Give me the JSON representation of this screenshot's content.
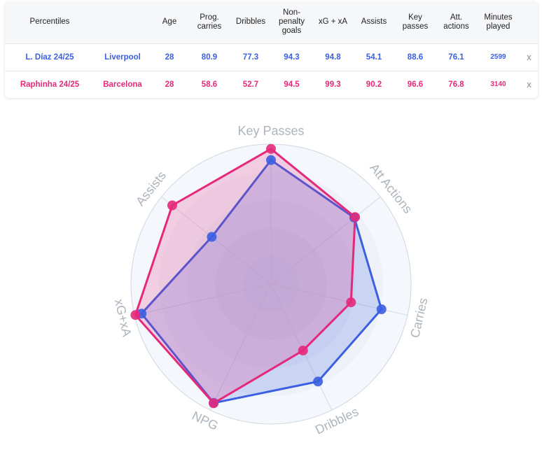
{
  "table": {
    "headers": [
      "Percentiles",
      "",
      "Age",
      "Prog. carries",
      "Dribbles",
      "Non-penalty goals",
      "xG + xA",
      "Assists",
      "Key passes",
      "Att. actions",
      "Minutes played",
      ""
    ],
    "rows": [
      {
        "player": "L. Díaz 24/25",
        "team": "Liverpool",
        "age": "28",
        "prog_carries": "80.9",
        "dribbles": "77.3",
        "np_goals": "94.3",
        "xg_xa": "94.8",
        "assists": "54.1",
        "key_passes": "88.6",
        "att_actions": "76.1",
        "minutes": "2599",
        "remove": "x",
        "color": "#3b5fe0"
      },
      {
        "player": "Raphinha 24/25",
        "team": "Barcelona",
        "age": "28",
        "prog_carries": "58.6",
        "dribbles": "52.7",
        "np_goals": "94.5",
        "xg_xa": "99.3",
        "assists": "90.2",
        "key_passes": "96.6",
        "att_actions": "76.8",
        "minutes": "3140",
        "remove": "x",
        "color": "#e4297b"
      }
    ]
  },
  "chart_data": {
    "type": "radar",
    "axes": [
      "Key Passes",
      "Att Actions",
      "Carries",
      "Dribbles",
      "NPG",
      "xG+xA",
      "Assists"
    ],
    "range": [
      0,
      100
    ],
    "series": [
      {
        "name": "L. Díaz 24/25",
        "color": "#3b5fe0",
        "values": [
          88.6,
          76.1,
          80.9,
          77.3,
          94.3,
          94.8,
          54.1
        ]
      },
      {
        "name": "Raphinha 24/25",
        "color": "#e4297b",
        "values": [
          96.6,
          76.8,
          58.6,
          52.7,
          94.5,
          99.3,
          90.2
        ]
      }
    ]
  }
}
